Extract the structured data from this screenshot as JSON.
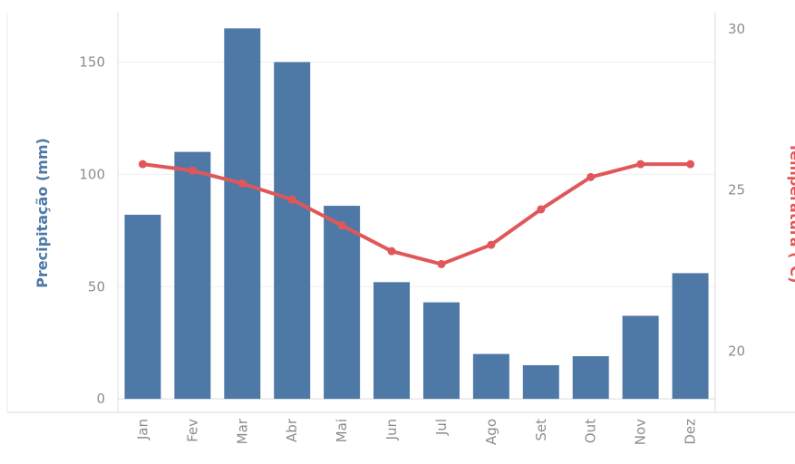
{
  "chart_data": {
    "type": "bar+line",
    "categories": [
      "Jan",
      "Fev",
      "Mar",
      "Abr",
      "Mai",
      "Jun",
      "Jul",
      "Ago",
      "Set",
      "Out",
      "Nov",
      "Dez"
    ],
    "series": [
      {
        "name": "Precipitação (mm)",
        "type": "bar",
        "axis": "left",
        "color": "#4e79a7",
        "values": [
          82,
          110,
          165,
          150,
          86,
          52,
          43,
          20,
          15,
          19,
          37,
          56
        ]
      },
      {
        "name": "Temperatura (°C)",
        "type": "line",
        "axis": "right",
        "color": "#e15759",
        "values": [
          25.8,
          25.6,
          25.2,
          24.7,
          23.9,
          23.1,
          22.7,
          23.3,
          24.4,
          25.4,
          25.8,
          25.8
        ]
      }
    ],
    "y_left": {
      "label": "Precipitação (mm)",
      "ticks": [
        0,
        50,
        100,
        150
      ],
      "range": [
        -6,
        172
      ]
    },
    "y_right": {
      "label": "Temperatura (°C)",
      "ticks": [
        20,
        25,
        30
      ],
      "range": [
        18.1,
        30.5
      ]
    },
    "grid": true,
    "legend": "none"
  }
}
